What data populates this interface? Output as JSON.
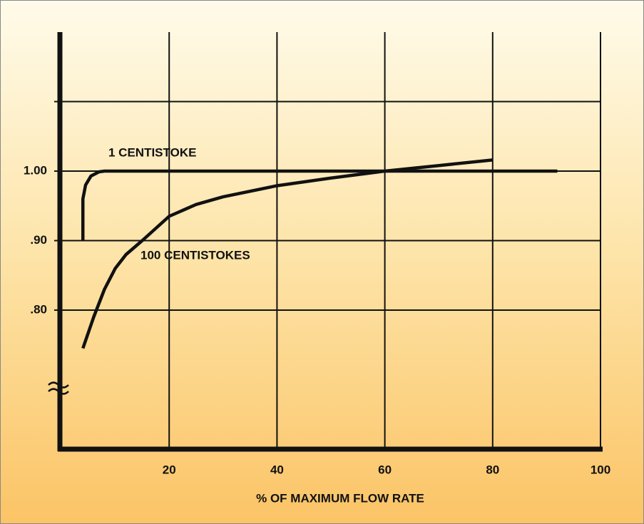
{
  "chart_data": {
    "type": "line",
    "xlabel": "% OF MAXIMUM FLOW RATE",
    "xlim": [
      0,
      100
    ],
    "xticks": [
      20,
      40,
      60,
      80,
      100
    ],
    "ylim": [
      0.6,
      1.2
    ],
    "yticks": [
      {
        "value": 0.8,
        "label": ".80"
      },
      {
        "value": 0.9,
        "label": ".90"
      },
      {
        "value": 1,
        "label": "1.00"
      },
      {
        "value": 1.1,
        "label": null
      }
    ],
    "grid": true,
    "series": [
      {
        "name": "1 CENTISTOKE",
        "color": "#111111",
        "x": [
          4,
          4,
          4.5,
          5.5,
          7,
          8,
          92
        ],
        "values": [
          0.9,
          0.96,
          0.98,
          0.993,
          0.999,
          1.0,
          1.0
        ]
      },
      {
        "name": "100 CENTISTOKES",
        "color": "#111111",
        "x": [
          4,
          6,
          8,
          10,
          12,
          15,
          20,
          25,
          30,
          40,
          50,
          60,
          70,
          80
        ],
        "values": [
          0.745,
          0.79,
          0.83,
          0.86,
          0.88,
          0.9,
          0.935,
          0.952,
          0.963,
          0.979,
          0.99,
          1.0,
          1.008,
          1.016
        ]
      }
    ]
  }
}
